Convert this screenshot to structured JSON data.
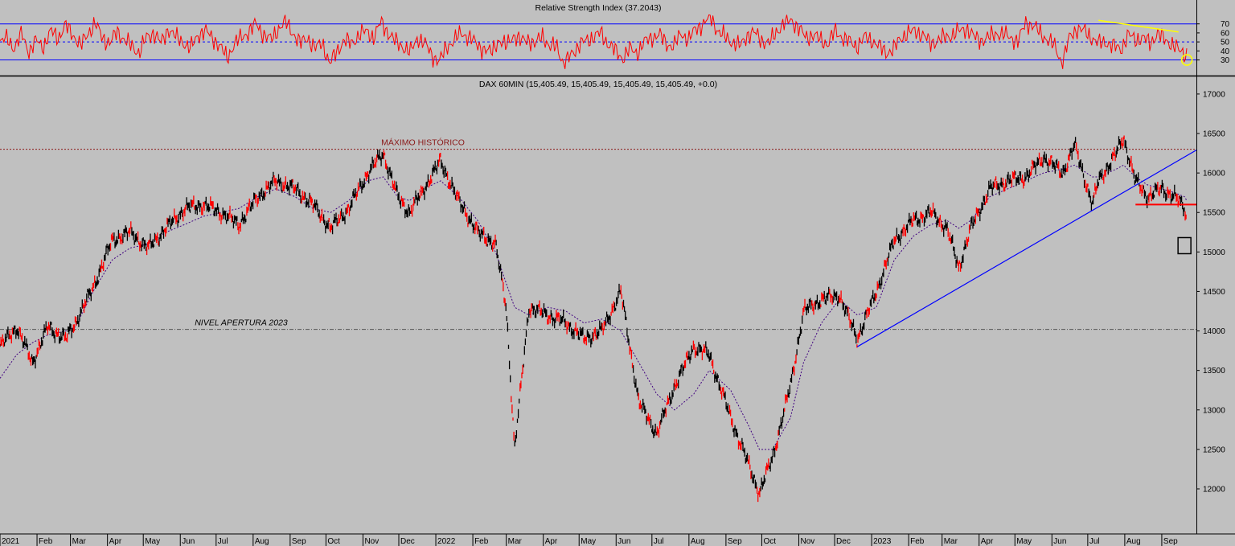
{
  "chart_data": [
    {
      "type": "line",
      "title": "Relative Strength Index (37.2043)",
      "y_ticks": [
        70,
        60,
        50,
        40,
        30
      ],
      "ylim": [
        18,
        84
      ],
      "overbought": 70,
      "midline": 50,
      "oversold": 30,
      "series": [
        {
          "color": "#ff0000",
          "values": [
            48,
            55,
            42,
            60,
            38,
            52,
            45,
            62,
            55,
            68,
            58,
            45,
            60,
            70,
            55,
            48,
            62,
            52,
            45,
            38,
            55,
            60,
            48,
            65,
            55,
            50,
            42,
            58,
            62,
            55,
            45,
            32,
            48,
            55,
            62,
            70,
            58,
            52,
            65,
            72,
            60,
            48,
            55,
            42,
            50,
            25,
            40,
            52,
            48,
            58,
            62,
            55,
            72,
            60,
            50,
            45,
            38,
            55,
            48,
            35,
            28,
            45,
            52,
            60,
            55,
            48,
            42,
            38,
            52,
            45,
            58,
            50,
            55,
            45,
            60,
            42,
            48,
            22,
            38,
            45,
            52,
            55,
            60,
            48,
            40,
            32,
            42,
            38,
            50,
            55,
            58,
            48,
            45,
            60,
            52,
            65,
            70,
            78,
            62,
            55,
            50,
            45,
            58,
            60,
            52,
            48,
            62,
            70,
            75,
            65,
            55,
            58,
            52,
            48,
            62,
            55,
            50,
            45,
            55,
            52,
            45,
            38,
            42,
            55,
            60,
            62,
            58,
            48,
            52,
            55,
            58,
            62,
            65,
            55,
            52,
            55,
            60,
            58,
            55,
            50,
            72,
            68,
            60,
            52,
            45,
            26,
            55,
            65,
            62,
            55,
            48,
            50,
            45,
            42,
            58,
            52,
            55,
            48,
            60,
            52,
            48,
            40,
            36
          ]
        }
      ],
      "annotations": [
        {
          "type": "trendline",
          "color": "#ffff00",
          "from": {
            "t": "2023-07-10",
            "rsi": 74
          },
          "to": {
            "t": "2023-09-15",
            "rsi": 61
          }
        },
        {
          "type": "circle",
          "color": "#ffff00",
          "at": {
            "t": "2023-09-22",
            "rsi": 30
          }
        }
      ]
    },
    {
      "type": "line",
      "title": "DAX 60MIN (15,405.49, 15,405.49, 15,405.49, 15,405.49, +0.0)",
      "x_ticks": [
        "2021",
        "Feb",
        "Mar",
        "Apr",
        "May",
        "Jun",
        "Jul",
        "Aug",
        "Sep",
        "Oct",
        "Nov",
        "Dec",
        "2022",
        "Feb",
        "Mar",
        "Apr",
        "May",
        "Jun",
        "Jul",
        "Aug",
        "Sep",
        "Oct",
        "Nov",
        "Dec",
        "2023",
        "Feb",
        "Mar",
        "Apr",
        "May",
        "Jun",
        "Jul",
        "Aug",
        "Sep"
      ],
      "y_ticks": [
        17000,
        16500,
        16000,
        15500,
        15000,
        14500,
        14000,
        13500,
        13000,
        12500,
        12000
      ],
      "ylim": [
        11450,
        17050
      ],
      "series": [
        {
          "color": "#000000",
          "x": [
            "2021-01-01",
            "2021-01-15",
            "2021-01-28",
            "2021-02-10",
            "2021-02-25",
            "2021-03-05",
            "2021-03-20",
            "2021-04-05",
            "2021-04-20",
            "2021-05-05",
            "2021-05-20",
            "2021-06-05",
            "2021-06-20",
            "2021-07-05",
            "2021-07-20",
            "2021-08-05",
            "2021-08-20",
            "2021-09-05",
            "2021-09-20",
            "2021-10-05",
            "2021-10-20",
            "2021-11-05",
            "2021-11-18",
            "2021-11-30",
            "2021-12-10",
            "2021-12-22",
            "2022-01-05",
            "2022-01-20",
            "2022-02-05",
            "2022-02-20",
            "2022-03-01",
            "2022-03-08",
            "2022-03-20",
            "2022-04-05",
            "2022-04-20",
            "2022-05-05",
            "2022-05-20",
            "2022-06-05",
            "2022-06-20",
            "2022-07-05",
            "2022-07-20",
            "2022-08-05",
            "2022-08-18",
            "2022-09-05",
            "2022-09-20",
            "2022-09-29",
            "2022-10-10",
            "2022-10-25",
            "2022-11-05",
            "2022-11-20",
            "2022-12-05",
            "2022-12-20",
            "2023-01-05",
            "2023-01-20",
            "2023-02-05",
            "2023-02-20",
            "2023-03-05",
            "2023-03-15",
            "2023-03-25",
            "2023-04-10",
            "2023-04-25",
            "2023-05-10",
            "2023-05-25",
            "2023-06-10",
            "2023-06-20",
            "2023-07-05",
            "2023-07-10",
            "2023-07-25",
            "2023-07-31",
            "2023-08-10",
            "2023-08-20",
            "2023-09-01",
            "2023-09-12",
            "2023-09-20",
            "2023-09-22"
          ],
          "values": [
            13800,
            14050,
            13600,
            14050,
            13900,
            14100,
            14550,
            15150,
            15250,
            15050,
            15300,
            15550,
            15600,
            15500,
            15350,
            15700,
            15900,
            15800,
            15600,
            15300,
            15550,
            16000,
            16250,
            15700,
            15500,
            15800,
            16150,
            15650,
            15250,
            15100,
            14300,
            12500,
            14300,
            14200,
            14100,
            13900,
            14000,
            14500,
            13100,
            12700,
            13300,
            13800,
            13700,
            12900,
            12300,
            11950,
            12400,
            13300,
            14250,
            14400,
            14450,
            13900,
            14500,
            15150,
            15400,
            15500,
            15300,
            14800,
            15300,
            15800,
            15900,
            15950,
            16200,
            16000,
            16350,
            15600,
            15900,
            16250,
            16450,
            15900,
            15700,
            15800,
            15700,
            15550,
            15400
          ]
        },
        {
          "color": "#400080",
          "values": [
            13400,
            13700,
            13850,
            13950,
            14000,
            14050,
            14500,
            14900,
            15050,
            15100,
            15250,
            15350,
            15450,
            15500,
            15550,
            15700,
            15800,
            15700,
            15550,
            15500,
            15650,
            15900,
            15950,
            15700,
            15650,
            15800,
            15900,
            15700,
            15400,
            15000,
            14600,
            14300,
            14200,
            14300,
            14250,
            14100,
            14150,
            14000,
            13600,
            13200,
            13000,
            13200,
            13500,
            13250,
            12800,
            12500,
            12500,
            12900,
            13600,
            14100,
            14400,
            14200,
            14300,
            14900,
            15200,
            15350,
            15400,
            15300,
            15400,
            15700,
            15800,
            15900,
            16000,
            16050,
            16100,
            15950,
            15950,
            16050,
            16100,
            15950,
            15850,
            15800,
            15750,
            15700,
            15650
          ]
        }
      ],
      "annotations": [
        {
          "type": "hline",
          "label": "MÁXIMO HISTÓRICO",
          "y": 16300,
          "color": "#8b1a1a"
        },
        {
          "type": "hline",
          "label": "NIVEL APERTURA 2023",
          "y": 14020,
          "color": "#555555"
        },
        {
          "type": "trendline",
          "color": "#0000ff",
          "from": {
            "t": "2022-12-20",
            "y": 13800
          },
          "to": {
            "t": "2023-09-30",
            "y": 16290
          }
        },
        {
          "type": "level",
          "color": "#ff0000",
          "from": {
            "t": "2023-08-10",
            "y": 15600
          },
          "to": {
            "t": "2023-09-30",
            "y": 15600
          }
        },
        {
          "type": "box",
          "color": "#000000",
          "at": {
            "t": "2023-09-20",
            "y": 15080
          }
        }
      ]
    }
  ]
}
